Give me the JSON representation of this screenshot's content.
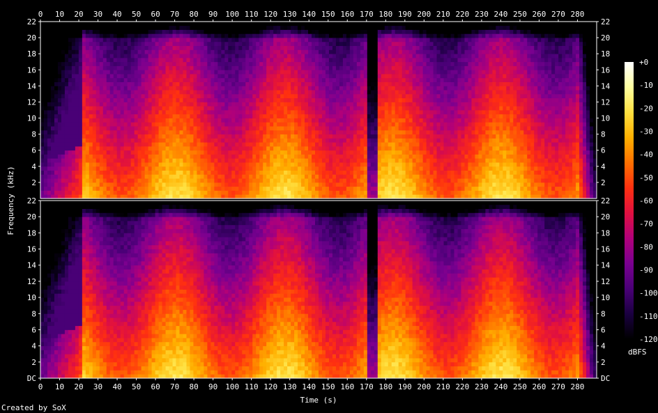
{
  "chart_data": {
    "type": "heatmap",
    "title": "",
    "xlabel": "Time (s)",
    "ylabel": "Frequency (kHz)",
    "footer": "Created by SoX",
    "x_ticks": [
      "0",
      "10",
      "20",
      "30",
      "40",
      "50",
      "60",
      "70",
      "80",
      "90",
      "100",
      "110",
      "120",
      "130",
      "140",
      "150",
      "160",
      "170",
      "180",
      "190",
      "200",
      "210",
      "220",
      "230",
      "240",
      "250",
      "260",
      "270",
      "280"
    ],
    "xlim": [
      0,
      290
    ],
    "channels": [
      {
        "y_ticks": [
          "22",
          "20",
          "18",
          "16",
          "14",
          "12",
          "10",
          "8",
          "6",
          "4",
          "2"
        ]
      },
      {
        "y_ticks": [
          "22",
          "20",
          "18",
          "16",
          "14",
          "12",
          "10",
          "8",
          "6",
          "4",
          "2",
          "DC"
        ]
      }
    ],
    "ylim_khz": [
      0,
      22
    ],
    "colorbar": {
      "unit": "dBFS",
      "range": [
        -120,
        0
      ],
      "ticks": [
        "+0",
        "-10",
        "-20",
        "-30",
        "-40",
        "-50",
        "-60",
        "-70",
        "-80",
        "-90",
        "-100",
        "-110",
        "-120"
      ]
    },
    "colors": [
      "#000000",
      "#1a0040",
      "#4a0077",
      "#7a0090",
      "#b0007a",
      "#e01040",
      "#ff3010",
      "#ff7000",
      "#ffb000",
      "#ffe040",
      "#ffffa0",
      "#ffffff"
    ]
  }
}
